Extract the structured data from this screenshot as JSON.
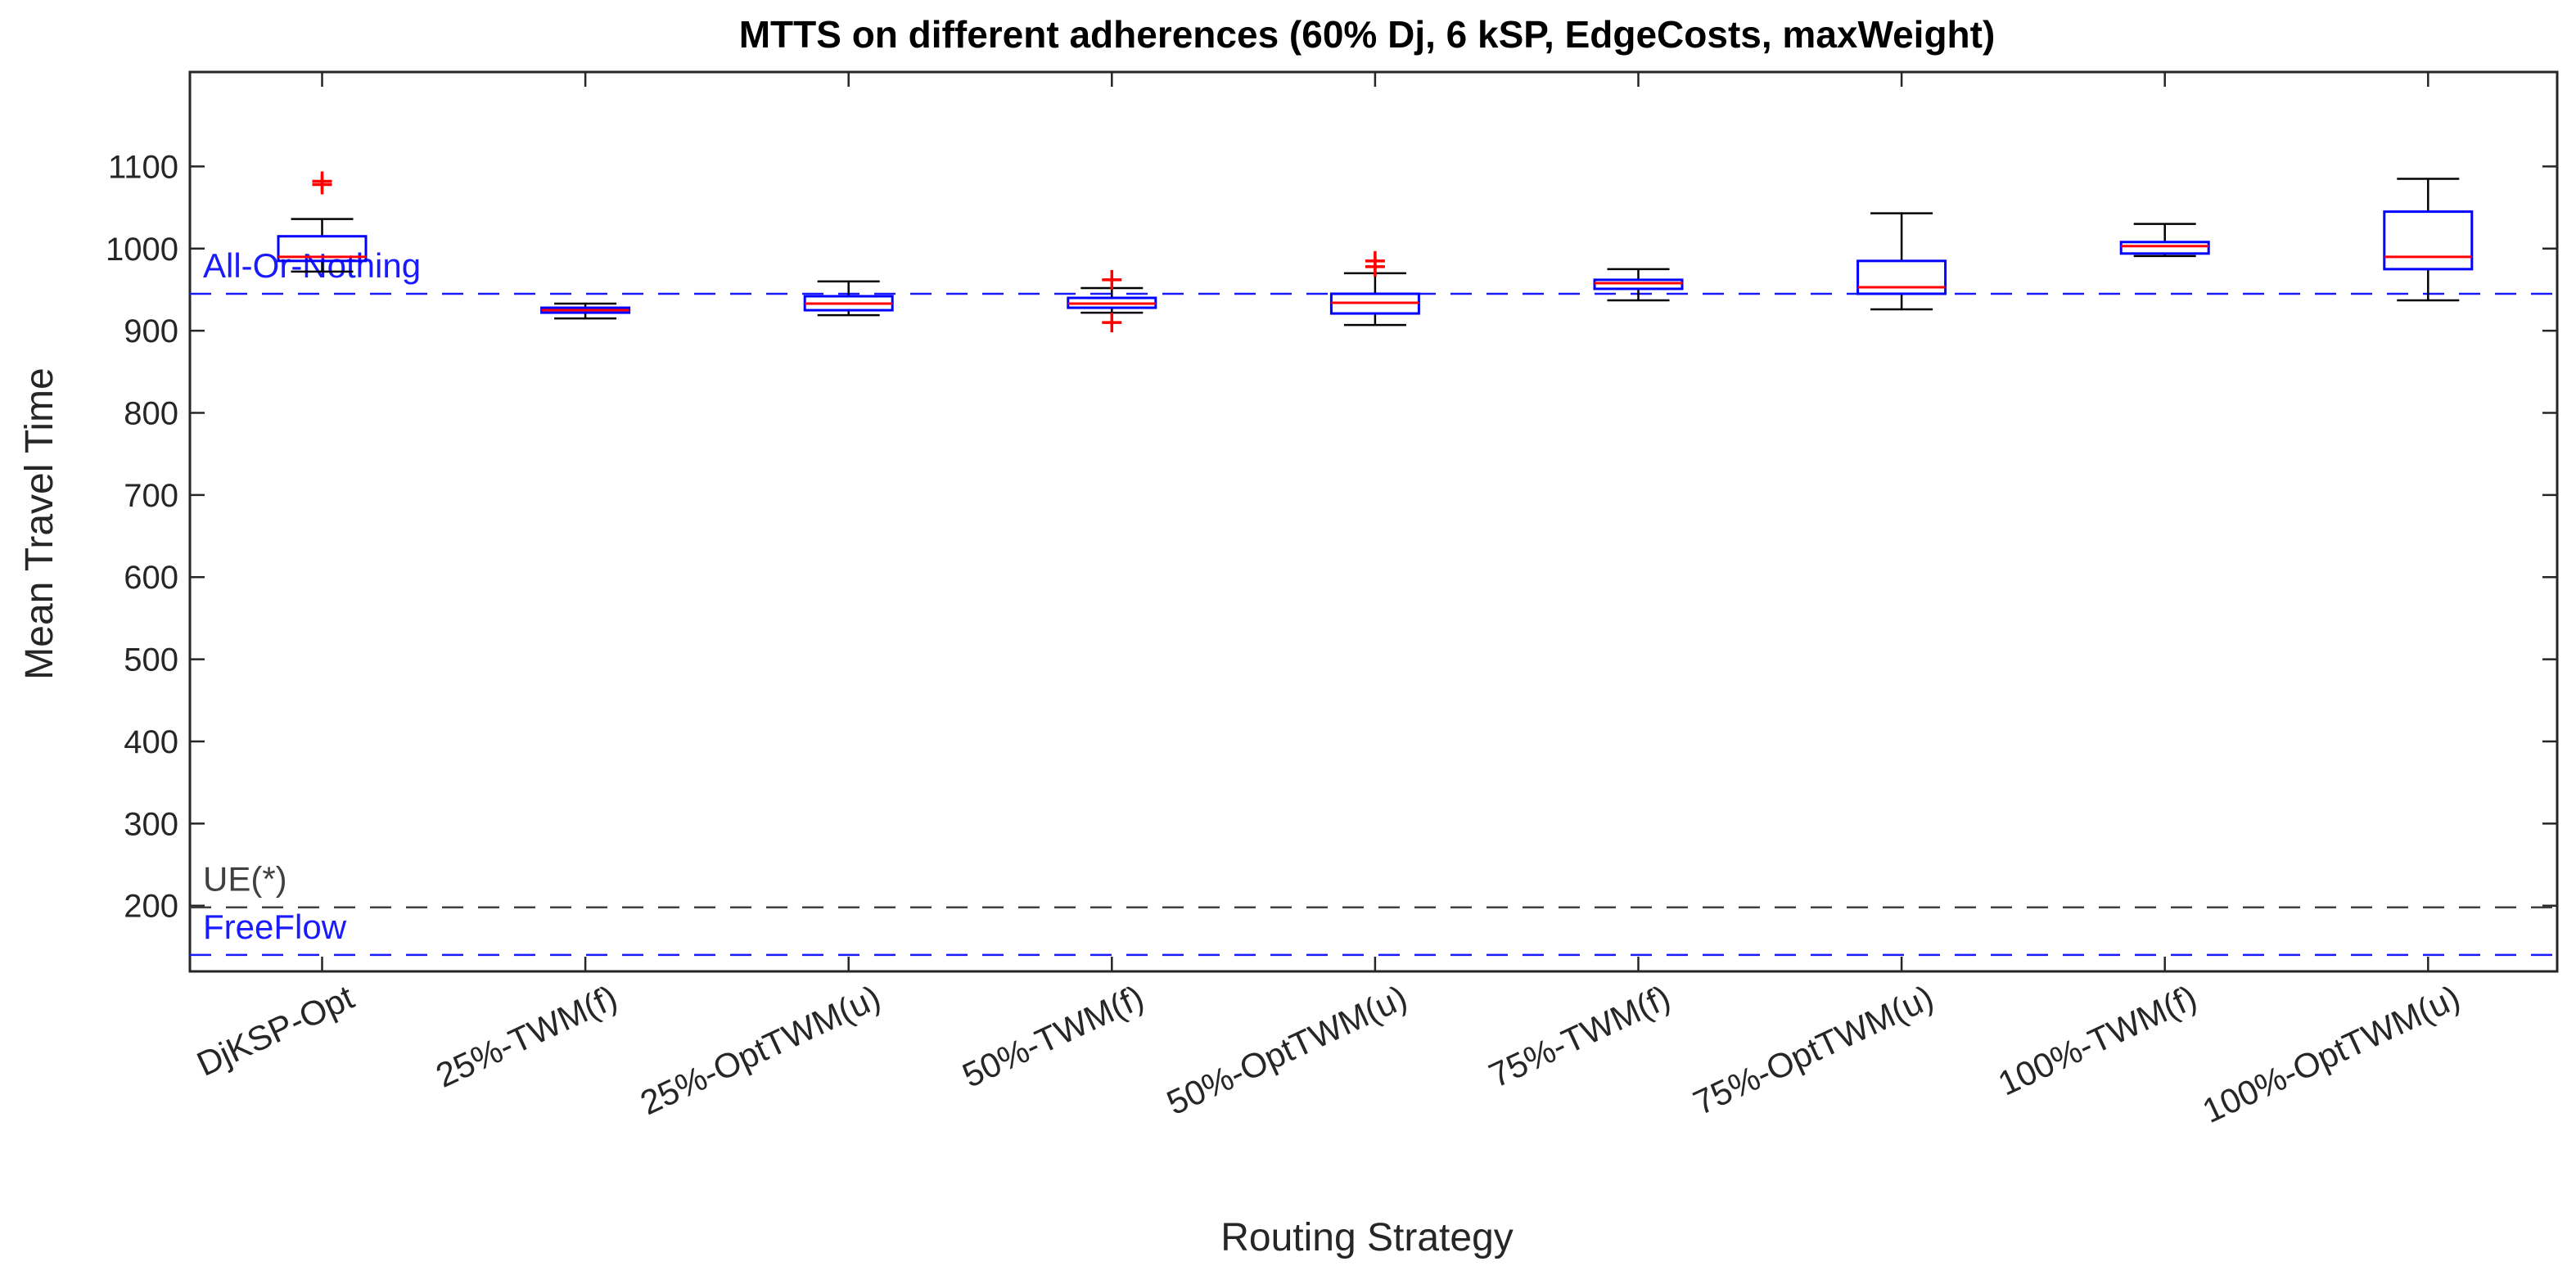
{
  "chart_data": {
    "type": "boxplot",
    "title": "MTTS on different adherences (60% Dj, 6 kSP, EdgeCosts, maxWeight)",
    "xlabel": "Routing Strategy",
    "ylabel": "Mean Travel Time",
    "ylim": [
      120,
      1215
    ],
    "yticks": [
      200,
      300,
      400,
      500,
      600,
      700,
      800,
      900,
      1000,
      1100
    ],
    "categories": [
      "DjKSP-Opt",
      "25%-TWM(f)",
      "25%-OptTWM(u)",
      "50%-TWM(f)",
      "50%-OptTWM(u)",
      "75%-TWM(f)",
      "75%-OptTWM(u)",
      "100%-TWM(f)",
      "100%-OptTWM(u)"
    ],
    "boxes": [
      {
        "whisker_low": 972,
        "q1": 985,
        "median": 990,
        "q3": 1015,
        "whisker_high": 1036,
        "outliers": [
          1078,
          1082
        ]
      },
      {
        "whisker_low": 915,
        "q1": 922,
        "median": 925,
        "q3": 928,
        "whisker_high": 933,
        "outliers": []
      },
      {
        "whisker_low": 919,
        "q1": 925,
        "median": 933,
        "q3": 942,
        "whisker_high": 960,
        "outliers": []
      },
      {
        "whisker_low": 922,
        "q1": 928,
        "median": 933,
        "q3": 940,
        "whisker_high": 952,
        "outliers": [
          910,
          962
        ]
      },
      {
        "whisker_low": 907,
        "q1": 921,
        "median": 934,
        "q3": 945,
        "whisker_high": 970,
        "outliers": [
          978,
          985
        ]
      },
      {
        "whisker_low": 937,
        "q1": 951,
        "median": 958,
        "q3": 962,
        "whisker_high": 975,
        "outliers": []
      },
      {
        "whisker_low": 926,
        "q1": 945,
        "median": 953,
        "q3": 985,
        "whisker_high": 1043,
        "outliers": []
      },
      {
        "whisker_low": 991,
        "q1": 994,
        "median": 1003,
        "q3": 1008,
        "whisker_high": 1030,
        "outliers": []
      },
      {
        "whisker_low": 937,
        "q1": 975,
        "median": 990,
        "q3": 1045,
        "whisker_high": 1085,
        "outliers": []
      }
    ],
    "reference_lines": [
      {
        "label": "All-Or-Nothing",
        "value": 945,
        "color": "#1a1aff"
      },
      {
        "label": "UE(*)",
        "value": 198,
        "color": "#404040"
      },
      {
        "label": "FreeFlow",
        "value": 140,
        "color": "#1a1aff"
      }
    ],
    "colors": {
      "box": "#0000ff",
      "median": "#ff0000",
      "whisker": "#000000",
      "outlier": "#ff0000"
    }
  }
}
